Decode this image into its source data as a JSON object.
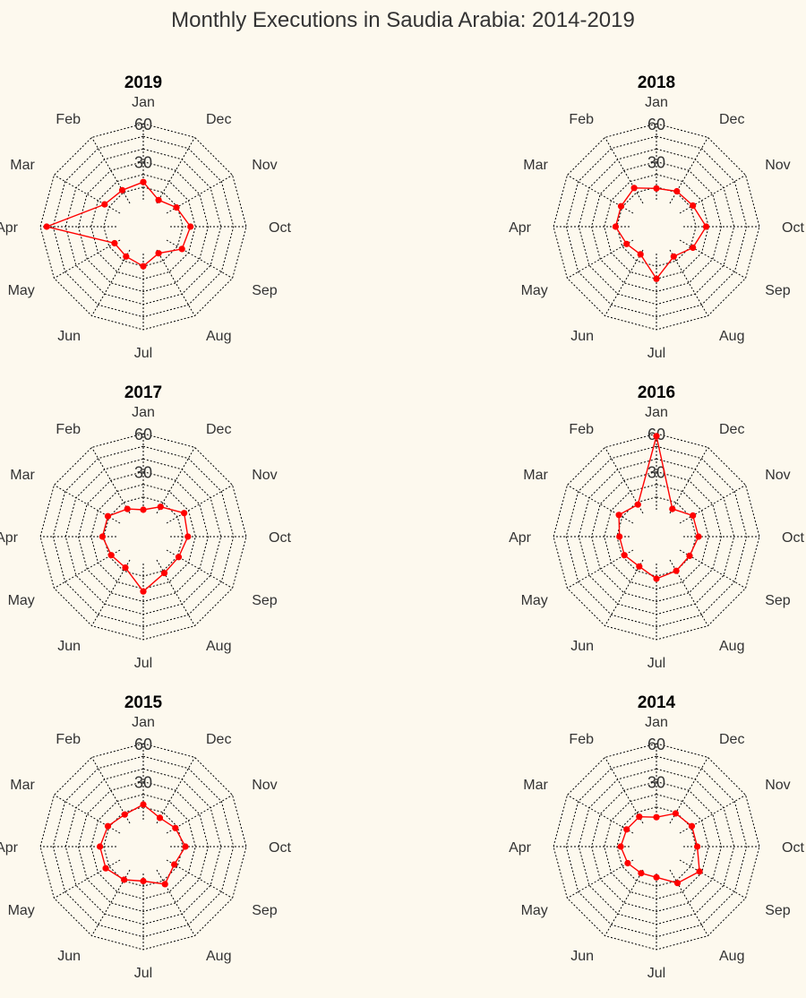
{
  "title": "Monthly Executions in Saudia Arabia: 2014-2019",
  "colors": {
    "background": "#fdf9ee",
    "series": "#ff0000",
    "grid": "#000000",
    "text": "#333333"
  },
  "chart_data": {
    "type": "radar",
    "title": "Monthly Executions in Saudia Arabia: 2014-2019",
    "categories": [
      "Jan",
      "Dec",
      "Nov",
      "Oct",
      "Sep",
      "Aug",
      "Jul",
      "Jun",
      "May",
      "Apr",
      "Mar",
      "Feb"
    ],
    "radial_range": [
      0,
      60
    ],
    "radial_ticks": [
      "30",
      "60"
    ],
    "grid": true,
    "series_color": "#ff0000",
    "panels": [
      {
        "title": "2019",
        "values": [
          14,
          3,
          9,
          16,
          14,
          3,
          10,
          6,
          5,
          55,
          14,
          12
        ]
      },
      {
        "title": "2018",
        "values": [
          9,
          11,
          12,
          18,
          12,
          6,
          20,
          4,
          6,
          11,
          11,
          14
        ]
      },
      {
        "title": "2017",
        "values": [
          0,
          6,
          16,
          14,
          11,
          12,
          22,
          7,
          8,
          11,
          11,
          4
        ]
      },
      {
        "title": "2016",
        "values": [
          58,
          4,
          12,
          12,
          9,
          10,
          12,
          6,
          8,
          8,
          13,
          8
        ]
      },
      {
        "title": "2015",
        "values": [
          12,
          5,
          8,
          12,
          7,
          13,
          6,
          9,
          13,
          13,
          11,
          8
        ]
      },
      {
        "title": "2014",
        "values": [
          2,
          9,
          11,
          11,
          18,
          12,
          3,
          3,
          5,
          7,
          6,
          6
        ]
      }
    ]
  }
}
